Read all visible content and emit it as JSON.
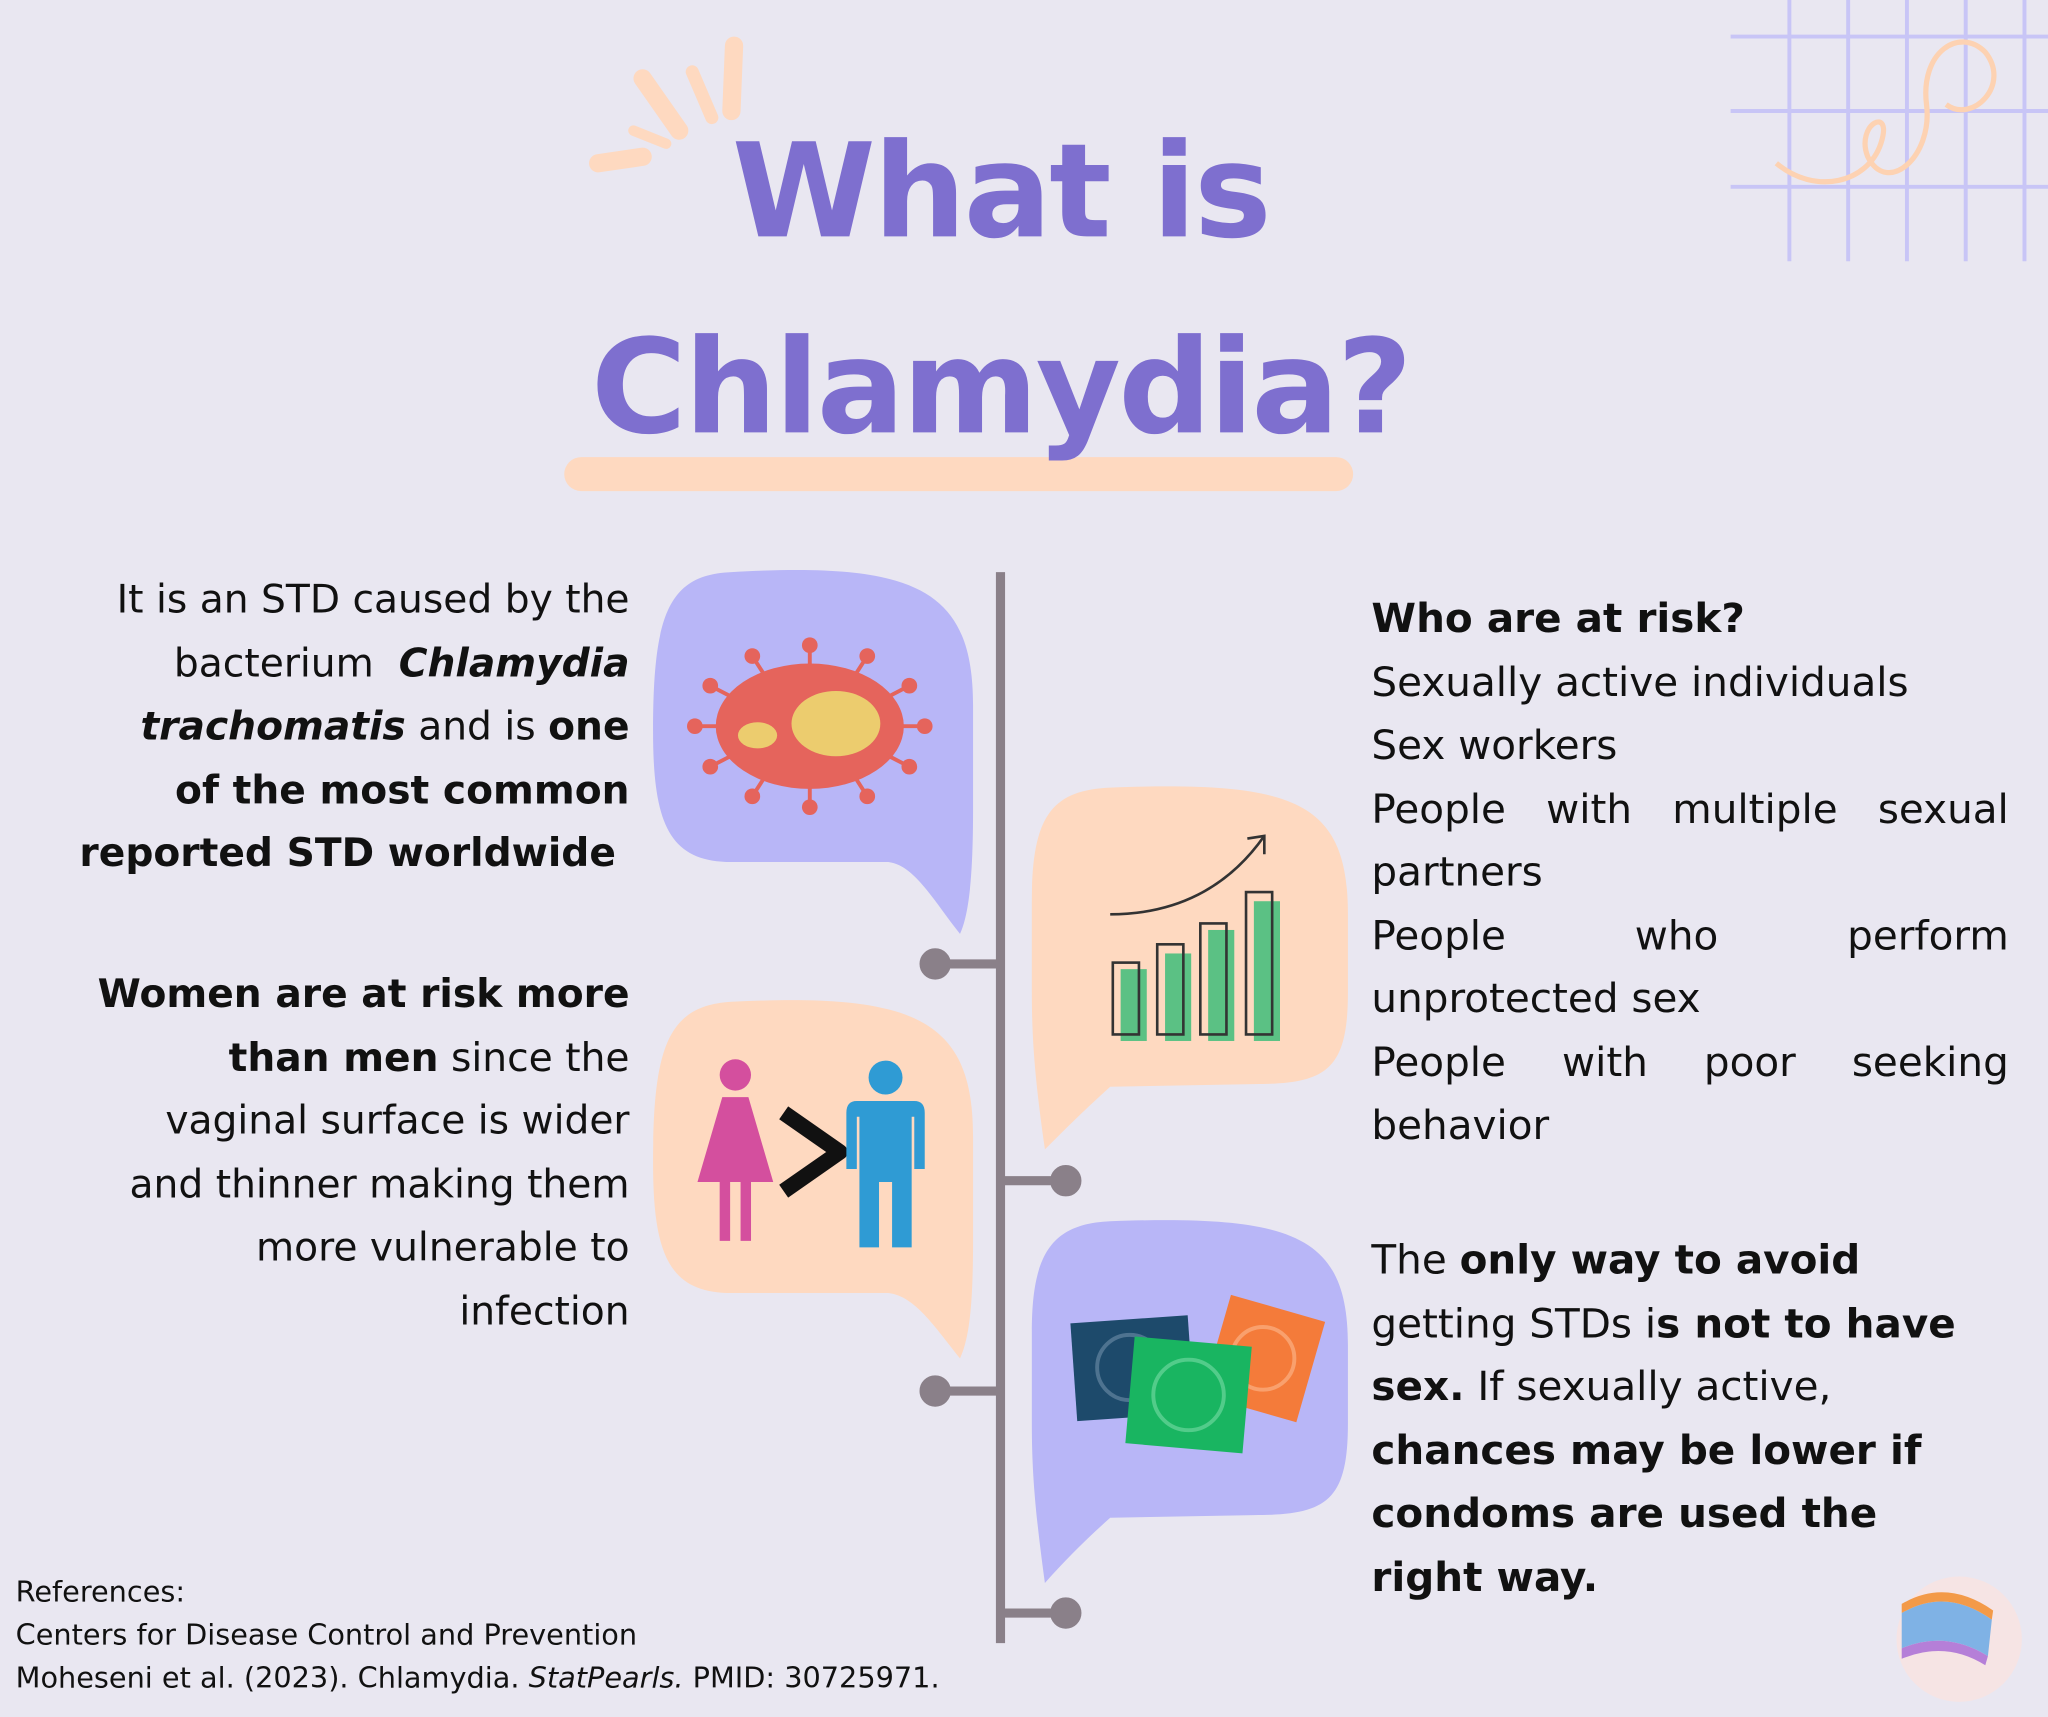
{
  "title": {
    "line1": "What is",
    "line2": "Chlamydia?"
  },
  "left_blocks": [
    {
      "lines": [
        [
          {
            "text": "It is an STD caused by the"
          }
        ],
        [
          {
            "text": "bacterium  "
          },
          {
            "text": "Chlamydia",
            "bold": true,
            "italic": true
          }
        ],
        [
          {
            "text": "trachomatis",
            "bold": true,
            "italic": true
          },
          {
            "text": " and is "
          },
          {
            "text": "one",
            "bold": true
          }
        ],
        [
          {
            "text": "of the most common",
            "bold": true
          }
        ],
        [
          {
            "text": "reported STD worldwide ",
            "bold": true
          }
        ]
      ]
    },
    {
      "lines": [
        [
          {
            "text": "Women are at risk more",
            "bold": true
          }
        ],
        [
          {
            "text": "than men",
            "bold": true
          },
          {
            "text": " since the"
          }
        ],
        [
          {
            "text": "vaginal surface is wider"
          }
        ],
        [
          {
            "text": "and thinner making them"
          }
        ],
        [
          {
            "text": "more vulnerable to"
          }
        ],
        [
          {
            "text": "infection"
          }
        ]
      ]
    }
  ],
  "risk": {
    "heading": "Who are at risk?",
    "items": [
      [
        "Sexually active individuals"
      ],
      [
        "Sex workers"
      ],
      [
        "People with multiple sexual",
        "partners"
      ],
      [
        "People who perform",
        "unprotected sex"
      ],
      [
        "People with poor seeking",
        "behavior"
      ]
    ]
  },
  "prevention": {
    "lines": [
      [
        {
          "text": "The "
        },
        {
          "text": "only way to avoid",
          "bold": true
        }
      ],
      [
        {
          "text": "getting STDs i"
        },
        {
          "text": "s not to have",
          "bold": true
        }
      ],
      [
        {
          "text": "sex.",
          "bold": true
        },
        {
          "text": " If sexually active,"
        }
      ],
      [
        {
          "text": "chances may be lower if",
          "bold": true
        }
      ],
      [
        {
          "text": "condoms are used the",
          "bold": true
        }
      ],
      [
        {
          "text": "right way.",
          "bold": true
        }
      ]
    ]
  },
  "references": {
    "heading": "References:",
    "lines": [
      [
        {
          "text": "Centers for Disease Control and Prevention"
        }
      ],
      [
        {
          "text": "Moheseni et al. (2023). Chlamydia. "
        },
        {
          "text": "StatPearls.",
          "italic": true
        },
        {
          "text": " PMID: 30725971."
        }
      ]
    ]
  }
}
